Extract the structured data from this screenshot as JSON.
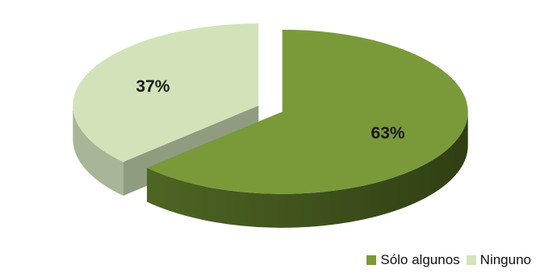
{
  "chart_data": {
    "type": "pie",
    "style": "3d-exploded",
    "categories": [
      "Sólo algunos",
      "Ninguno"
    ],
    "values": [
      63,
      37
    ],
    "labels": [
      "63%",
      "37%"
    ],
    "colors": [
      "#7a9a3a",
      "#d3e3b9"
    ],
    "side_colors": [
      "#4e6523",
      "#a9b597"
    ],
    "inner_colors": [
      "#5f7a2c",
      "#8f9c80"
    ],
    "legend_position": "bottom-right"
  }
}
